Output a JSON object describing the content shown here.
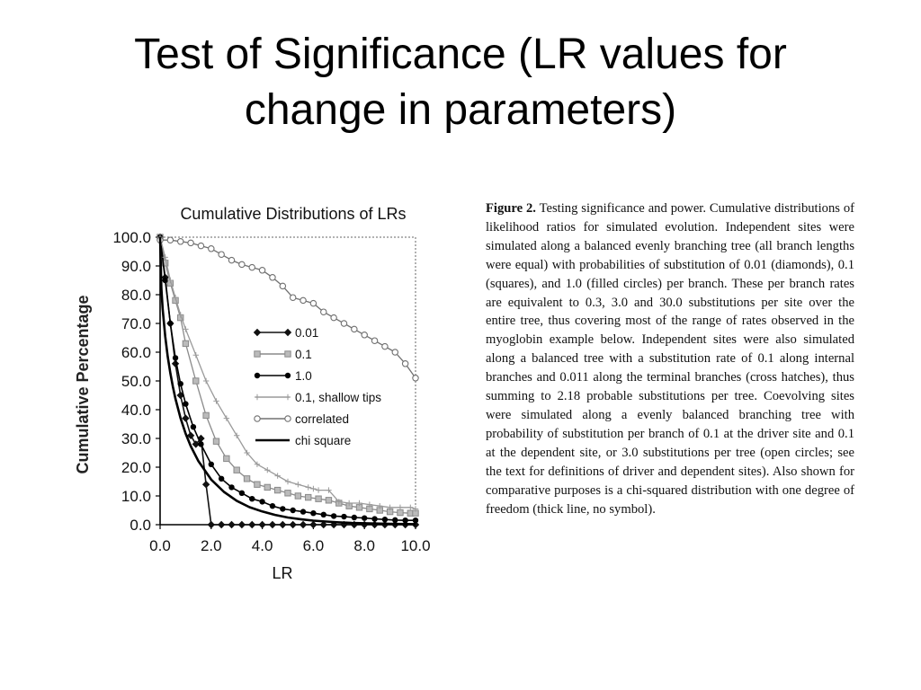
{
  "slide": {
    "title_line1": "Test of Significance (LR values for",
    "title_line2": "change in parameters)"
  },
  "caption": {
    "label": "Figure 2.",
    "text": "Testing significance and power. Cumulative distributions of likelihood ratios for simulated evolution. Independent sites were simulated along a balanced evenly branching tree (all branch lengths were equal) with probabilities of substitution of 0.01 (diamonds), 0.1 (squares), and 1.0 (filled circles) per branch. These per branch rates are equivalent to 0.3, 3.0 and 30.0 substitutions per site over the entire tree, thus covering most of the range of rates observed in the myoglobin example below. Independent sites were also simulated along a balanced tree with a substitution rate of 0.1 along internal branches and 0.011 along the terminal branches (cross hatches), thus summing to 2.18 probable substitutions per tree. Coevolving sites were simulated along a evenly balanced branching tree with probability of substitution per branch of 0.1 at the driver site and 0.1 at the dependent site, or 3.0 substitutions per tree (open circles; see the text for definitions of driver and dependent sites). Also shown for comparative purposes is a chi-squared distribution with one degree of freedom (thick line, no symbol)."
  },
  "chart_data": {
    "type": "line",
    "title": "Cumulative Distributions of LRs",
    "xlabel": "LR",
    "ylabel": "Cumulative Percentage",
    "xlim": [
      0,
      10
    ],
    "ylim": [
      0,
      100
    ],
    "x_ticks": [
      "0.0",
      "2.0",
      "4.0",
      "6.0",
      "8.0",
      "10.0"
    ],
    "y_ticks": [
      "0.0",
      "10.0",
      "20.0",
      "30.0",
      "40.0",
      "50.0",
      "60.0",
      "70.0",
      "80.0",
      "90.0",
      "100.0"
    ],
    "grid": false,
    "legend_position": "center-right",
    "series": [
      {
        "name": "0.01",
        "marker": "diamond",
        "color": "#111111",
        "x": [
          0,
          0.2,
          0.4,
          0.6,
          0.8,
          1.0,
          1.2,
          1.4,
          1.6,
          1.8,
          2.0,
          2.4,
          2.8,
          3.2,
          3.6,
          4.0,
          4.4,
          4.8,
          5.2,
          5.6,
          6.0,
          6.4,
          6.8,
          7.2,
          7.6,
          8.0,
          8.4,
          8.8,
          9.2,
          9.6,
          10.0
        ],
        "y": [
          100,
          86,
          70,
          56,
          45,
          37,
          31,
          28,
          30,
          14,
          0,
          0,
          0,
          0,
          0,
          0,
          0,
          0,
          0,
          0,
          0,
          0,
          0,
          0,
          0,
          0,
          0,
          0,
          0,
          0,
          0
        ]
      },
      {
        "name": "0.1",
        "marker": "square",
        "color": "#8a8a8a",
        "x": [
          0,
          0.2,
          0.4,
          0.6,
          0.8,
          1.0,
          1.4,
          1.8,
          2.2,
          2.6,
          3.0,
          3.4,
          3.8,
          4.2,
          4.6,
          5.0,
          5.4,
          5.8,
          6.2,
          6.6,
          7.0,
          7.4,
          7.8,
          8.2,
          8.6,
          9.0,
          9.4,
          9.8,
          10.0
        ],
        "y": [
          100,
          91,
          84,
          78,
          72,
          63,
          50,
          38,
          29,
          23,
          19,
          16,
          14,
          13,
          12,
          11,
          10,
          9.5,
          9,
          8.5,
          7.5,
          6.5,
          6,
          5.5,
          5,
          4.5,
          4.2,
          4,
          4
        ]
      },
      {
        "name": "1.0",
        "marker": "circle-filled",
        "color": "#000000",
        "x": [
          0,
          0.2,
          0.4,
          0.6,
          0.8,
          1.0,
          1.3,
          1.6,
          2.0,
          2.4,
          2.8,
          3.2,
          3.6,
          4.0,
          4.4,
          4.8,
          5.2,
          5.6,
          6.0,
          6.4,
          6.8,
          7.2,
          7.6,
          8.0,
          8.4,
          8.8,
          9.2,
          9.6,
          10.0
        ],
        "y": [
          100,
          85,
          70,
          58,
          49,
          42,
          34,
          28,
          21,
          16,
          13,
          11,
          9,
          8,
          6.5,
          5.5,
          5,
          4.5,
          4,
          3.5,
          3,
          2.8,
          2.5,
          2.3,
          2,
          1.8,
          1.6,
          1.5,
          1.5
        ]
      },
      {
        "name": "0.1, shallow tips",
        "marker": "cross",
        "color": "#9a9a9a",
        "x": [
          0,
          0.2,
          0.4,
          0.6,
          0.8,
          1.0,
          1.4,
          1.8,
          2.2,
          2.6,
          3.0,
          3.4,
          3.8,
          4.2,
          4.6,
          5.0,
          5.4,
          5.8,
          6.0,
          6.2,
          6.6,
          7.0,
          7.4,
          7.8,
          8.2,
          8.6,
          9.0,
          9.4,
          9.8,
          10.0
        ],
        "y": [
          100,
          93,
          85,
          79,
          73,
          68,
          59,
          50,
          43,
          37,
          31,
          25,
          21,
          19,
          17,
          15,
          14,
          13,
          12.5,
          12,
          12,
          8,
          7.5,
          7.5,
          7,
          6.5,
          6,
          6,
          6,
          5.5
        ]
      },
      {
        "name": "correlated",
        "marker": "circle-open",
        "color": "#707070",
        "x": [
          0,
          0.4,
          0.8,
          1.2,
          1.6,
          2.0,
          2.4,
          2.8,
          3.2,
          3.6,
          4.0,
          4.4,
          4.8,
          5.2,
          5.6,
          6.0,
          6.4,
          6.8,
          7.2,
          7.6,
          8.0,
          8.4,
          8.8,
          9.2,
          9.6,
          10.0
        ],
        "y": [
          99,
          99,
          98.5,
          98,
          97,
          96,
          94,
          92,
          90.5,
          89.5,
          88.5,
          86,
          83,
          79,
          78,
          77,
          74,
          72,
          70,
          68,
          66,
          64,
          62,
          60,
          56,
          51
        ]
      },
      {
        "name": "chi square",
        "marker": "none",
        "color": "#000000",
        "x": [
          0,
          0.05,
          0.1,
          0.2,
          0.3,
          0.4,
          0.5,
          0.6,
          0.8,
          1.0,
          1.2,
          1.5,
          2.0,
          2.5,
          3.0,
          3.5,
          4.0,
          4.5,
          5.0,
          5.5,
          6.0,
          6.5,
          7.0,
          7.5,
          8.0,
          9.0,
          10.0
        ],
        "y": [
          100,
          82.3,
          75.2,
          65.5,
          58.4,
          52.7,
          48,
          43.9,
          37.1,
          31.7,
          27.3,
          22.1,
          15.7,
          11.4,
          8.3,
          6.1,
          4.6,
          3.4,
          2.5,
          1.9,
          1.4,
          1.1,
          0.8,
          0.6,
          0.5,
          0.3,
          0.2
        ]
      }
    ]
  }
}
